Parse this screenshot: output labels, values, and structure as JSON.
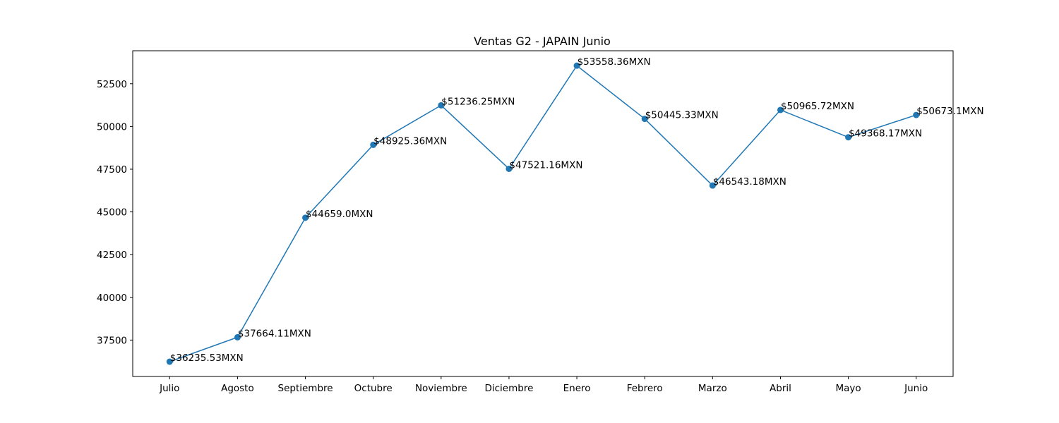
{
  "chart_data": {
    "type": "line",
    "title": "Ventas G2 - JAPAIN Junio",
    "xlabel": "",
    "ylabel": "",
    "categories": [
      "Julio",
      "Agosto",
      "Septiembre",
      "Octubre",
      "Noviembre",
      "Diciembre",
      "Enero",
      "Febrero",
      "Marzo",
      "Abril",
      "Mayo",
      "Junio"
    ],
    "series": [
      {
        "values": [
          36235.53,
          37664.11,
          44659.0,
          48925.36,
          51236.25,
          47521.16,
          53558.36,
          50445.33,
          46543.18,
          50965.72,
          49368.17,
          50673.1
        ]
      }
    ],
    "data_labels": [
      "$36235.53MXN",
      "$37664.11MXN",
      "$44659.0MXN",
      "$48925.36MXN",
      "$51236.25MXN",
      "$47521.16MXN",
      "$53558.36MXN",
      "$50445.33MXN",
      "$46543.18MXN",
      "$50965.72MXN",
      "$49368.17MXN",
      "$50673.1MXN"
    ],
    "yticks": [
      37500,
      40000,
      42500,
      45000,
      47500,
      50000,
      52500
    ],
    "ylim": [
      35370,
      54430
    ],
    "grid": false,
    "colors": {
      "line": "#1f77b4",
      "marker": "#1f77b4"
    }
  }
}
